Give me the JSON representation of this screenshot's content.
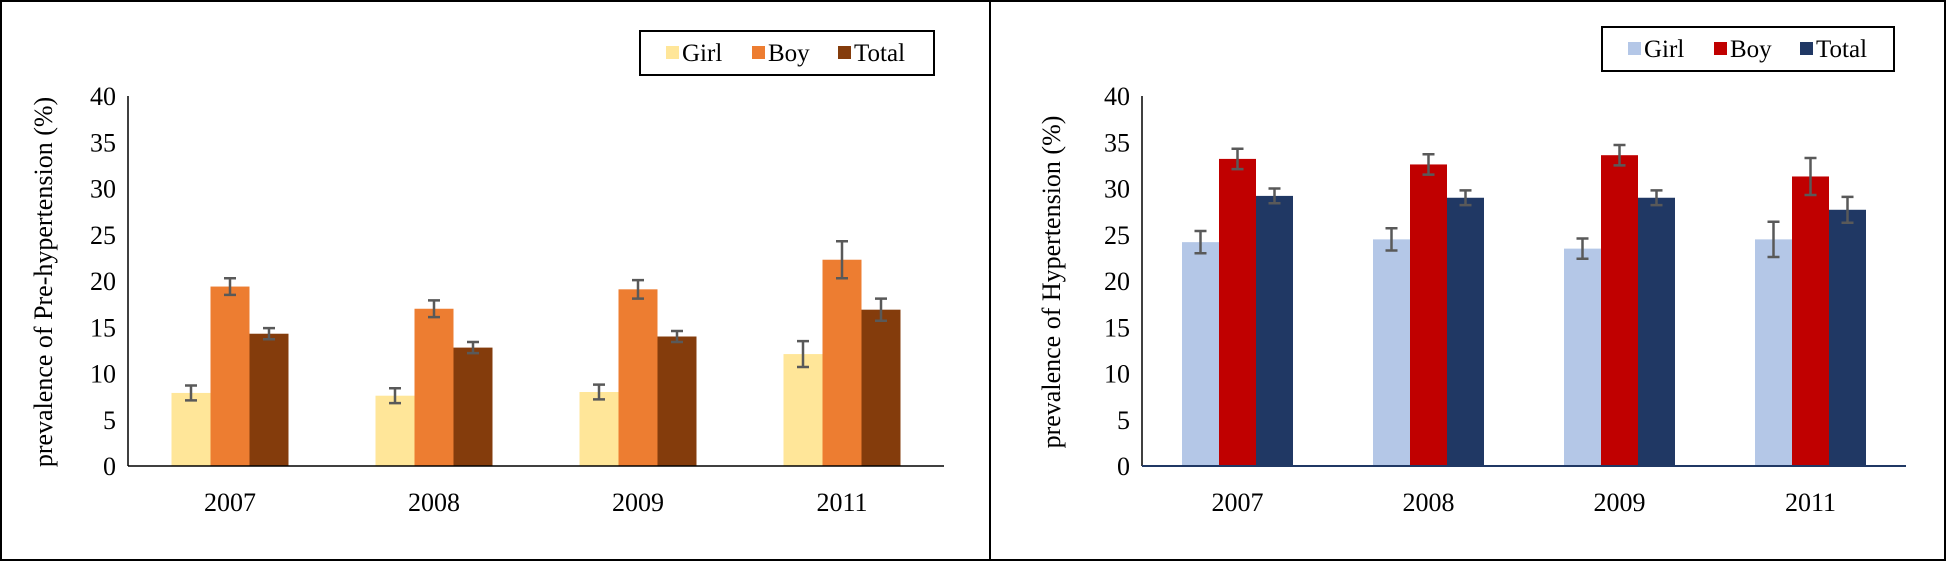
{
  "chart_data": [
    {
      "type": "bar",
      "title": "",
      "xlabel": "",
      "ylabel": "prevalence of Pre-hypertension (%)",
      "ylim": [
        0,
        40
      ],
      "yticks": [
        0,
        5,
        10,
        15,
        20,
        25,
        30,
        35,
        40
      ],
      "yticks_text": [
        "0",
        "5",
        "10",
        "15",
        "20",
        "25",
        "30",
        "35",
        "40"
      ],
      "grid": false,
      "legend_position": "top-right",
      "categories": [
        "2007",
        "2008",
        "2009",
        "2011"
      ],
      "series": [
        {
          "name": "Girl",
          "color": "#FFE699",
          "values": [
            7.9,
            7.6,
            8.0,
            12.1
          ],
          "errors": [
            0.8,
            0.8,
            0.8,
            1.4
          ]
        },
        {
          "name": "Boy",
          "color": "#ED7D31",
          "values": [
            19.4,
            17.0,
            19.1,
            22.3
          ],
          "errors": [
            0.9,
            0.9,
            1.0,
            2.0
          ]
        },
        {
          "name": "Total",
          "color": "#843C0C",
          "values": [
            14.3,
            12.8,
            14.0,
            16.9
          ],
          "errors": [
            0.6,
            0.6,
            0.6,
            1.2
          ]
        }
      ]
    },
    {
      "type": "bar",
      "title": "",
      "xlabel": "",
      "ylabel": "prevalence of Hypertension (%)",
      "ylim": [
        0,
        40
      ],
      "yticks": [
        0,
        5,
        10,
        15,
        20,
        25,
        30,
        35,
        40
      ],
      "yticks_text": [
        "0",
        "5",
        "10",
        "15",
        "20",
        "25",
        "30",
        "35",
        "40"
      ],
      "grid": false,
      "legend_position": "top-right",
      "categories": [
        "2007",
        "2008",
        "2009",
        "2011"
      ],
      "series": [
        {
          "name": "Girl",
          "color": "#B4C7E7",
          "values": [
            24.2,
            24.5,
            23.5,
            24.5
          ],
          "errors": [
            1.2,
            1.2,
            1.1,
            1.9
          ]
        },
        {
          "name": "Boy",
          "color": "#C00000",
          "values": [
            33.2,
            32.6,
            33.6,
            31.3
          ],
          "errors": [
            1.1,
            1.1,
            1.1,
            2.0
          ]
        },
        {
          "name": "Total",
          "color": "#203864",
          "values": [
            29.2,
            29.0,
            29.0,
            27.7
          ],
          "errors": [
            0.8,
            0.8,
            0.8,
            1.4
          ]
        }
      ]
    }
  ]
}
